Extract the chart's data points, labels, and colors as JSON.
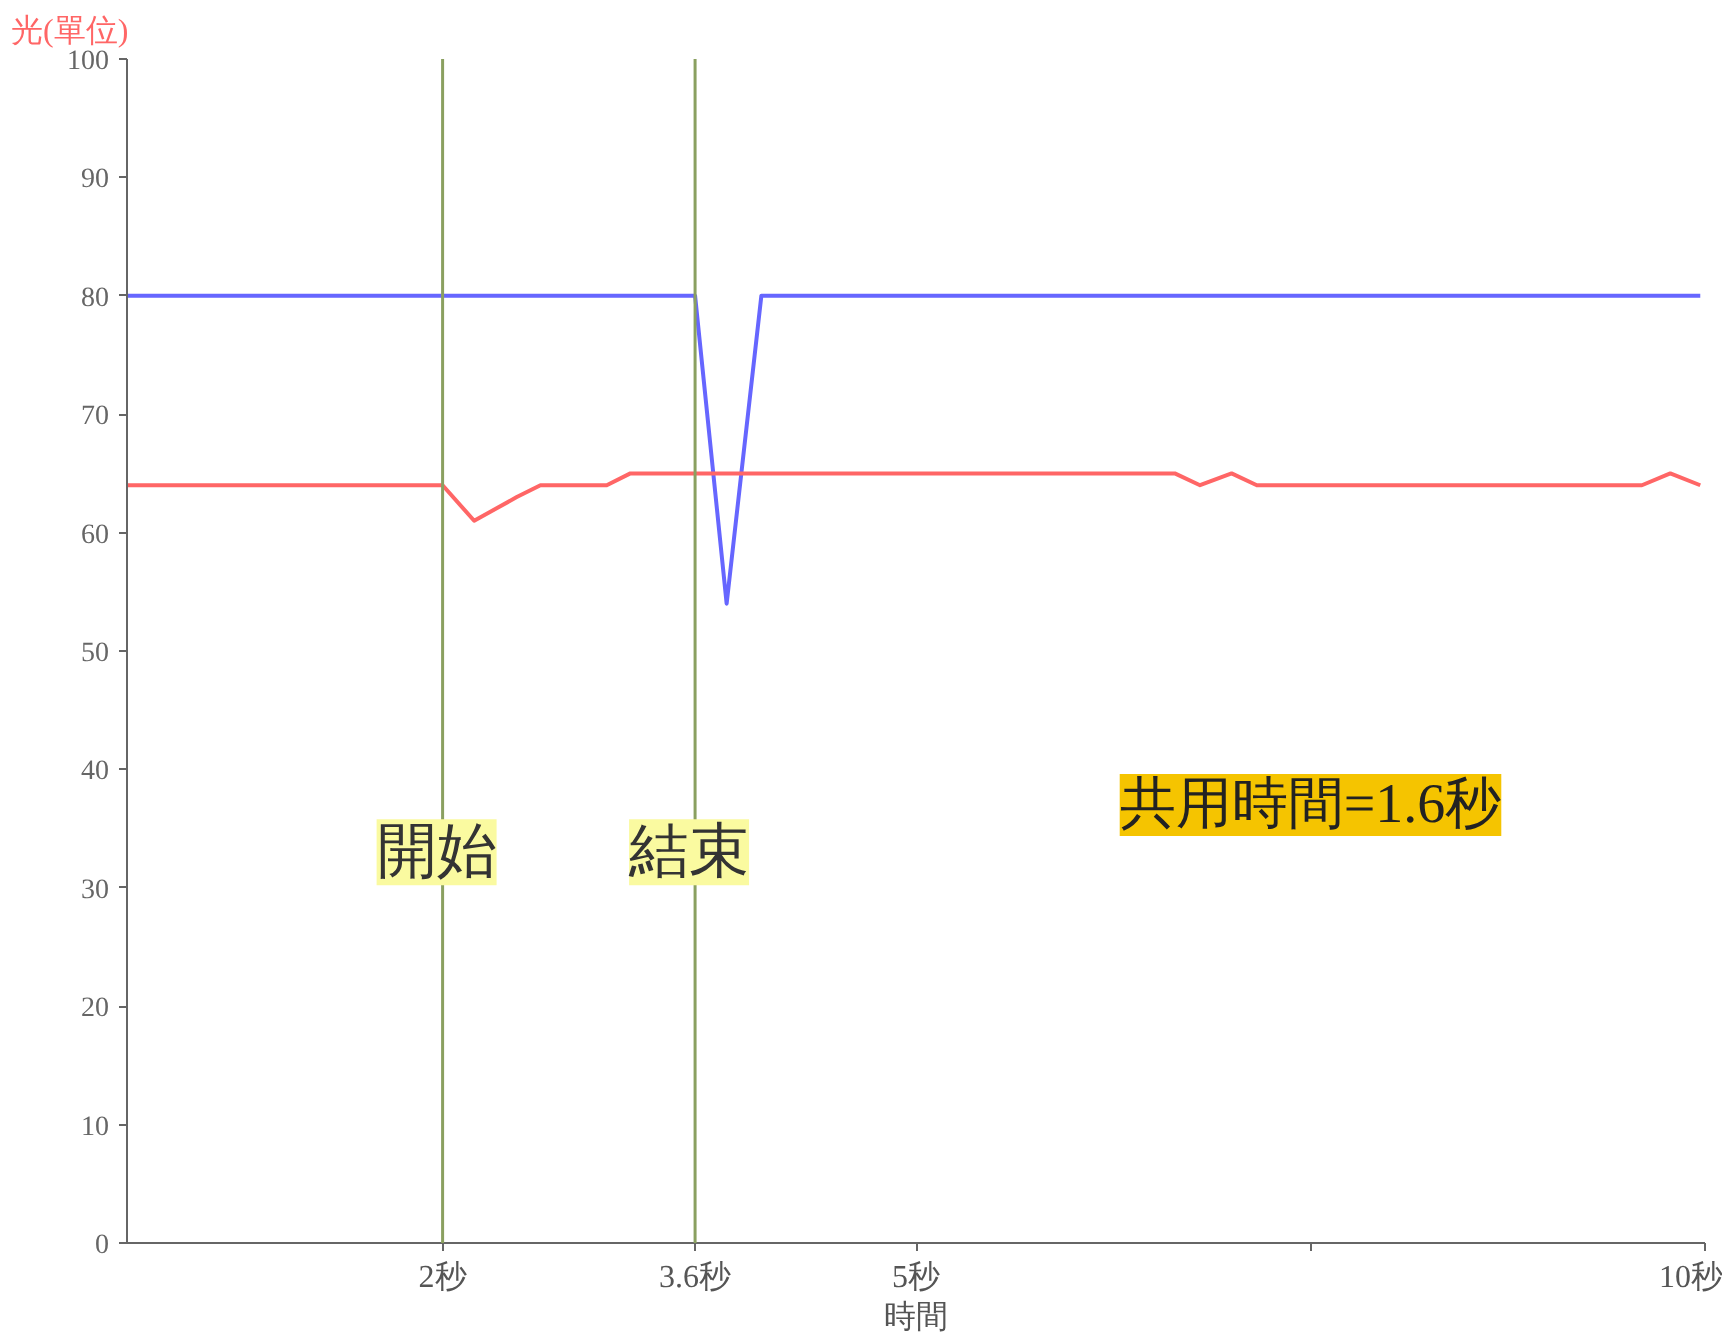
{
  "chart_data": {
    "type": "line",
    "ylabel": "光(單位)",
    "xlabel": "時間",
    "series": [
      {
        "color": "#6666ff",
        "x": [
          0,
          3.6,
          3.8,
          4.02,
          9.97
        ],
        "values": [
          80,
          80,
          54,
          80,
          80
        ]
      },
      {
        "color": "#ff6666",
        "x": [
          0,
          2.0,
          2.2,
          2.47,
          2.62,
          3.04,
          3.19,
          6.64,
          6.8,
          7.0,
          7.16,
          9.6,
          9.78,
          9.97
        ],
        "values": [
          64,
          64,
          61,
          63,
          64,
          64,
          65,
          65,
          64,
          65,
          64,
          64,
          65,
          64
        ]
      }
    ],
    "xlim": [
      0,
      10
    ],
    "ylim": [
      0,
      100
    ],
    "xticks": [
      {
        "value": 2,
        "label": "2秒"
      },
      {
        "value": 3.6,
        "label": "3.6秒"
      },
      {
        "value": 5,
        "label": "5秒"
      },
      {
        "value": 7.5,
        "label": null
      },
      {
        "value": 10,
        "label": "10秒"
      }
    ],
    "yticks": [
      0,
      10,
      20,
      30,
      40,
      50,
      60,
      70,
      80,
      90,
      100
    ],
    "grid": false,
    "marker": "none",
    "line_style": "solid",
    "ref_lines": [
      {
        "axis": "x",
        "value": 2,
        "label": "開始",
        "color": "#8aa060"
      },
      {
        "axis": "x",
        "value": 3.6,
        "label": "結束",
        "color": "#8aa060"
      }
    ],
    "annotations": [
      "共用時間=1.6秒"
    ]
  }
}
